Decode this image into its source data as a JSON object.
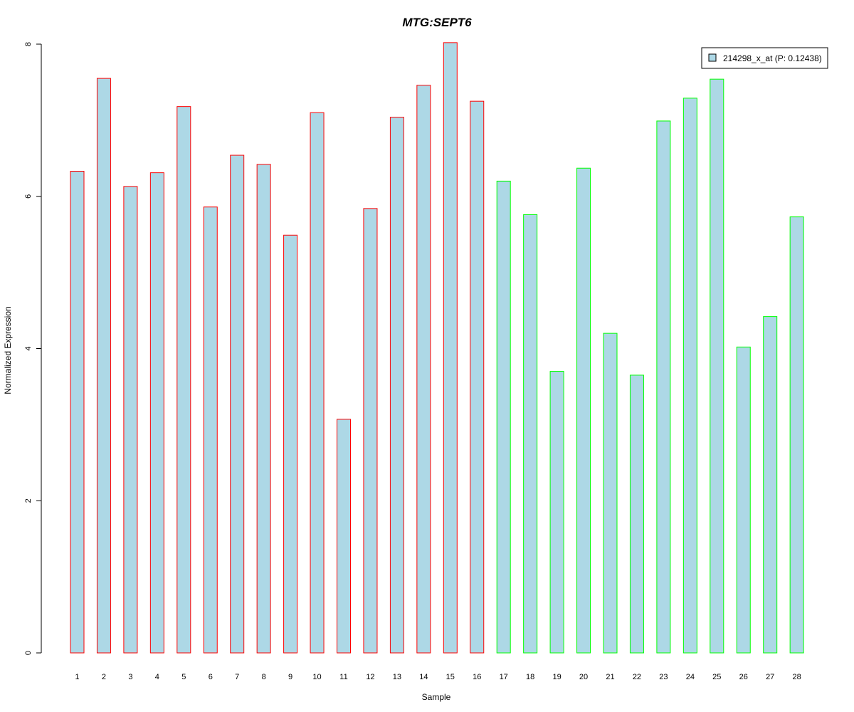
{
  "chart_data": {
    "type": "bar",
    "title": "MTG:SEPT6",
    "xlabel": "Sample",
    "ylabel": "Normalized Expression",
    "ylim": [
      0,
      8
    ],
    "yticks": [
      "0",
      "2",
      "4",
      "6",
      "8"
    ],
    "grid": false,
    "legend_position": "top-right",
    "categories": [
      "1",
      "2",
      "3",
      "4",
      "5",
      "6",
      "7",
      "8",
      "9",
      "10",
      "11",
      "12",
      "13",
      "14",
      "15",
      "16",
      "17",
      "18",
      "19",
      "20",
      "21",
      "22",
      "23",
      "24",
      "25",
      "26",
      "27",
      "28"
    ],
    "series": [
      {
        "name": "214298_x_at (P: 0.12438)",
        "values": [
          6.33,
          7.55,
          6.13,
          6.31,
          7.18,
          5.86,
          6.54,
          6.42,
          5.49,
          7.1,
          3.07,
          5.84,
          7.04,
          7.46,
          8.02,
          7.25,
          6.2,
          5.76,
          3.7,
          6.37,
          4.2,
          3.65,
          6.99,
          7.29,
          7.54,
          4.02,
          4.42,
          5.73
        ]
      }
    ],
    "group_border_colors": [
      "#ff0000",
      "#ff0000",
      "#ff0000",
      "#ff0000",
      "#ff0000",
      "#ff0000",
      "#ff0000",
      "#ff0000",
      "#ff0000",
      "#ff0000",
      "#ff0000",
      "#ff0000",
      "#ff0000",
      "#ff0000",
      "#ff0000",
      "#ff0000",
      "#00ff00",
      "#00ff00",
      "#00ff00",
      "#00ff00",
      "#00ff00",
      "#00ff00",
      "#00ff00",
      "#00ff00",
      "#00ff00",
      "#00ff00",
      "#00ff00",
      "#00ff00"
    ],
    "bar_fill_color": "#add8e6",
    "title_color": "#0000cc"
  }
}
